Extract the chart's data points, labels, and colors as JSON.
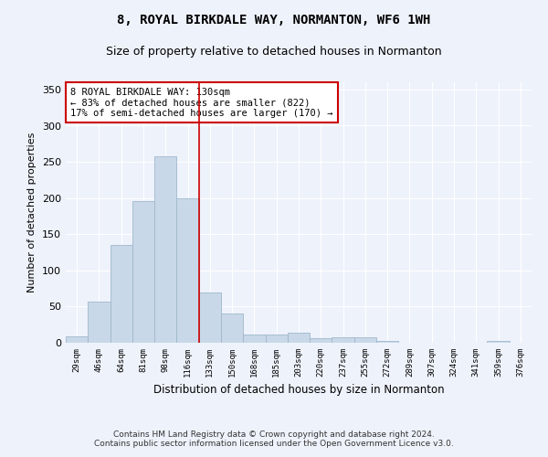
{
  "title": "8, ROYAL BIRKDALE WAY, NORMANTON, WF6 1WH",
  "subtitle": "Size of property relative to detached houses in Normanton",
  "xlabel": "Distribution of detached houses by size in Normanton",
  "ylabel": "Number of detached properties",
  "bar_color": "#c8d8e8",
  "bar_edge_color": "#a0b8cc",
  "background_color": "#eef2fb",
  "grid_color": "#ffffff",
  "categories": [
    "29sqm",
    "46sqm",
    "64sqm",
    "81sqm",
    "98sqm",
    "116sqm",
    "133sqm",
    "150sqm",
    "168sqm",
    "185sqm",
    "203sqm",
    "220sqm",
    "237sqm",
    "255sqm",
    "272sqm",
    "289sqm",
    "307sqm",
    "324sqm",
    "341sqm",
    "359sqm",
    "376sqm"
  ],
  "values": [
    9,
    57,
    135,
    196,
    258,
    200,
    70,
    40,
    12,
    12,
    14,
    6,
    7,
    7,
    3,
    0,
    0,
    0,
    0,
    3,
    0
  ],
  "ylim": [
    0,
    360
  ],
  "yticks": [
    0,
    50,
    100,
    150,
    200,
    250,
    300,
    350
  ],
  "annotation_text": "8 ROYAL BIRKDALE WAY: 130sqm\n← 83% of detached houses are smaller (822)\n17% of semi-detached houses are larger (170) →",
  "annotation_box_color": "#ffffff",
  "annotation_border_color": "#cc0000",
  "vline_color": "#cc0000",
  "vline_x": 5.5,
  "footer_line1": "Contains HM Land Registry data © Crown copyright and database right 2024.",
  "footer_line2": "Contains public sector information licensed under the Open Government Licence v3.0."
}
